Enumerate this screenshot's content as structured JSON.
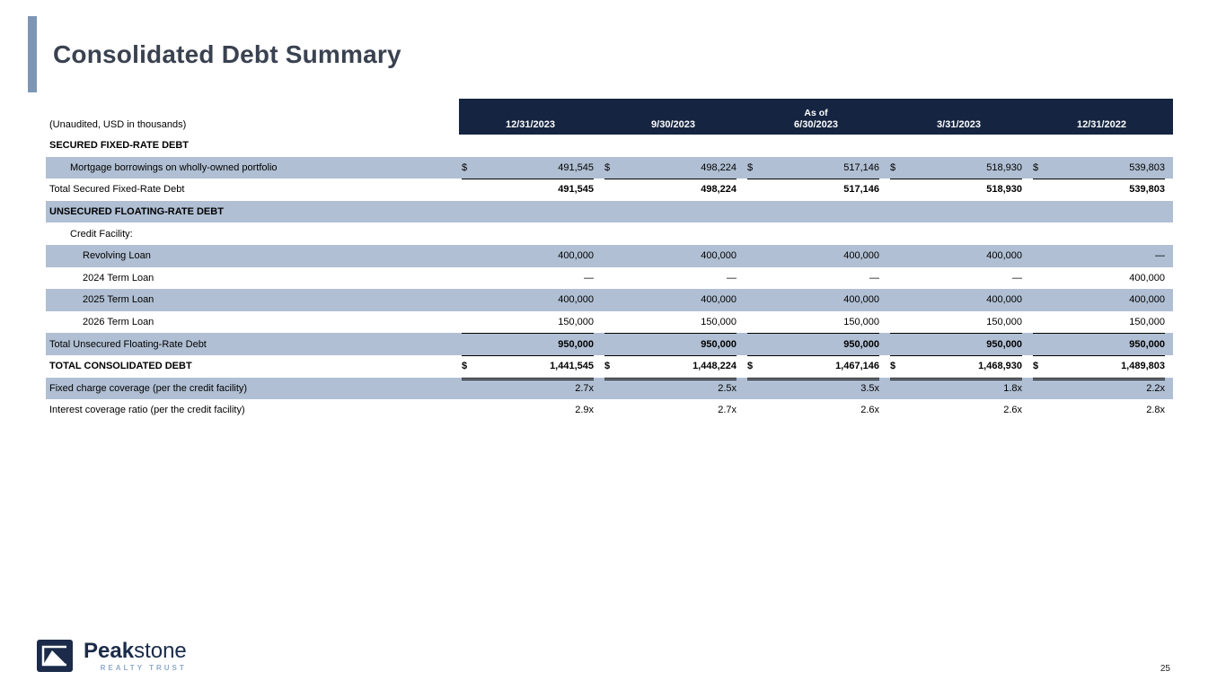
{
  "slide": {
    "title": "Consolidated Debt Summary",
    "page_number": "25"
  },
  "table": {
    "unit_note": "(Unaudited, USD in thousands)",
    "as_of_label": "As of",
    "currency_symbol": "$",
    "columns": [
      "12/31/2023",
      "9/30/2023",
      "6/30/2023",
      "3/31/2023",
      "12/31/2022"
    ],
    "rows": [
      {
        "label": "SECURED FIXED-RATE DEBT",
        "indent": 0,
        "shaded": false,
        "label_bold": true,
        "values": []
      },
      {
        "label": "Mortgage borrowings on wholly-owned portfolio",
        "indent": 1,
        "shaded": true,
        "dollar": true,
        "underline": "single",
        "values": [
          "491,545",
          "498,224",
          "517,146",
          "518,930",
          "539,803"
        ]
      },
      {
        "label": "Total Secured Fixed-Rate Debt",
        "indent": 0,
        "shaded": false,
        "values_bold": true,
        "values": [
          "491,545",
          "498,224",
          "517,146",
          "518,930",
          "539,803"
        ]
      },
      {
        "label": "UNSECURED FLOATING-RATE DEBT",
        "indent": 0,
        "shaded": true,
        "label_bold": true,
        "values": []
      },
      {
        "label": "Credit Facility:",
        "indent": 1,
        "shaded": false,
        "values": []
      },
      {
        "label": "Revolving Loan",
        "indent": 2,
        "shaded": true,
        "values": [
          "400,000",
          "400,000",
          "400,000",
          "400,000",
          "—"
        ]
      },
      {
        "label": "2024 Term Loan",
        "indent": 2,
        "shaded": false,
        "values": [
          "—",
          "—",
          "—",
          "—",
          "400,000"
        ]
      },
      {
        "label": "2025 Term Loan",
        "indent": 2,
        "shaded": true,
        "values": [
          "400,000",
          "400,000",
          "400,000",
          "400,000",
          "400,000"
        ]
      },
      {
        "label": "2026 Term Loan",
        "indent": 2,
        "shaded": false,
        "underline": "single",
        "values": [
          "150,000",
          "150,000",
          "150,000",
          "150,000",
          "150,000"
        ]
      },
      {
        "label": "Total Unsecured Floating-Rate Debt",
        "indent": 0,
        "shaded": true,
        "values_bold": true,
        "underline": "single",
        "values": [
          "950,000",
          "950,000",
          "950,000",
          "950,000",
          "950,000"
        ]
      },
      {
        "label": "TOTAL CONSOLIDATED DEBT",
        "indent": 0,
        "shaded": false,
        "label_bold": true,
        "values_bold": true,
        "dollar": true,
        "underline": "double",
        "values": [
          "1,441,545",
          "1,448,224",
          "1,467,146",
          "1,468,930",
          "1,489,803"
        ]
      },
      {
        "label": "Fixed charge coverage (per the credit facility)",
        "indent": 0,
        "shaded": true,
        "values": [
          "2.7x",
          "2.5x",
          "3.5x",
          "1.8x",
          "2.2x"
        ]
      },
      {
        "label": "Interest coverage ratio (per the credit facility)",
        "indent": 0,
        "shaded": false,
        "values": [
          "2.9x",
          "2.7x",
          "2.6x",
          "2.6x",
          "2.8x"
        ]
      }
    ]
  },
  "footer": {
    "brand_bold": "Peak",
    "brand_light": "stone",
    "brand_tagline": "REALTY TRUST"
  },
  "colors": {
    "header_navy": "#152440",
    "row_shade": "#b0bfd3",
    "accent_bar": "#7e96b5",
    "brand_navy": "#1b2b49",
    "brand_tagline_blue": "#8fa9c9"
  }
}
